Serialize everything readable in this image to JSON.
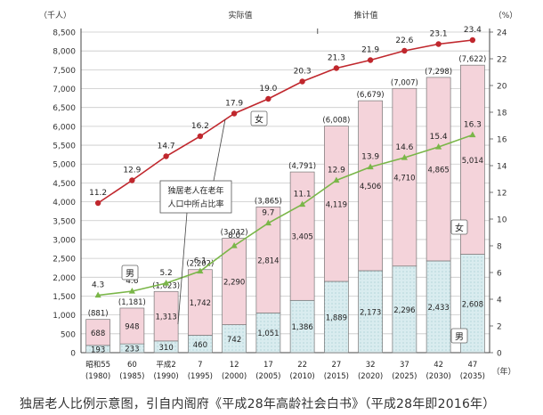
{
  "caption": "独居老人比例示意图，引自内阁府《平成28年高龄社会白书》（平成28年即2016年）",
  "chart_data": {
    "type": "bar",
    "left_axis": {
      "unit_label": "（千人）",
      "ylim": [
        0,
        8500
      ],
      "ticks": [
        "0",
        "500",
        "1,000",
        "1,500",
        "2,000",
        "2,500",
        "3,000",
        "3,500",
        "4,000",
        "4,500",
        "5,000",
        "5,500",
        "6,000",
        "6,500",
        "7,000",
        "7,500",
        "8,000",
        "8,500"
      ]
    },
    "right_axis": {
      "unit_label": "（%）",
      "ylim": [
        0,
        24
      ],
      "ticks": [
        "0",
        "2",
        "4",
        "6",
        "8",
        "10",
        "12",
        "14",
        "16",
        "18",
        "20",
        "22",
        "24"
      ]
    },
    "section_labels": {
      "actual": "实际值",
      "estimated": "推计值"
    },
    "x_unit": "（年）",
    "categories": [
      {
        "era": "昭和55",
        "year": "(1980)"
      },
      {
        "era": "60",
        "year": "(1985)"
      },
      {
        "era": "平成2",
        "year": "(1990)"
      },
      {
        "era": "7",
        "year": "(1995)"
      },
      {
        "era": "12",
        "year": "(2000)"
      },
      {
        "era": "17",
        "year": "(2005)"
      },
      {
        "era": "22",
        "year": "(2010)"
      },
      {
        "era": "27",
        "year": "(2015)"
      },
      {
        "era": "32",
        "year": "(2020)"
      },
      {
        "era": "37",
        "year": "(2025)"
      },
      {
        "era": "42",
        "year": "(2030)"
      },
      {
        "era": "47",
        "year": "(2035)"
      }
    ],
    "stacked_bars": {
      "male": [
        193,
        233,
        310,
        460,
        742,
        1051,
        1386,
        1889,
        2173,
        2296,
        2433,
        2608
      ],
      "female": [
        688,
        948,
        1313,
        1742,
        2290,
        2814,
        3405,
        4119,
        4506,
        4710,
        4865,
        5014
      ],
      "totals": [
        881,
        1181,
        1623,
        2202,
        3032,
        3865,
        4791,
        6008,
        6679,
        7007,
        7298,
        7622
      ],
      "male_labels": [
        "193",
        "233",
        "310",
        "460",
        "742",
        "1,051",
        "1,386",
        "1,889",
        "2,173",
        "2,296",
        "2,433",
        "2,608"
      ],
      "female_labels": [
        "688",
        "948",
        "1,313",
        "1,742",
        "2,290",
        "2,814",
        "3,405",
        "4,119",
        "4,506",
        "4,710",
        "4,865",
        "5,014"
      ],
      "total_labels": [
        "(881)",
        "(1,181)",
        "(1,623)",
        "(2,202)",
        "(3,032)",
        "(3,865)",
        "(4,791)",
        "(6,008)",
        "(6,679)",
        "(7,007)",
        "(7,298)",
        "(7,622)"
      ]
    },
    "lines": {
      "female_ratio": [
        11.2,
        12.9,
        14.7,
        16.2,
        17.9,
        19.0,
        20.3,
        21.3,
        21.9,
        22.6,
        23.1,
        23.4
      ],
      "female_ratio_labels": [
        "11.2",
        "12.9",
        "14.7",
        "16.2",
        "17.9",
        "19.0",
        "20.3",
        "21.3",
        "21.9",
        "22.6",
        "23.1",
        "23.4"
      ],
      "male_ratio": [
        4.3,
        4.6,
        5.2,
        6.1,
        8.0,
        9.7,
        11.1,
        12.9,
        13.9,
        14.6,
        15.4,
        16.3
      ],
      "male_ratio_labels": [
        "4.3",
        "4.6",
        "5.2",
        "6.1",
        "8.0",
        "9.7",
        "11.1",
        "12.9",
        "13.9",
        "14.6",
        "15.4",
        "16.3"
      ]
    },
    "labels": {
      "female": "女",
      "male": "男",
      "callout": [
        "独居老人在老年",
        "人口中所占比率"
      ]
    },
    "colors": {
      "female_bar": "#f4d3da",
      "male_bar": "#d9ecef",
      "female_line": "#c0272d",
      "male_line": "#7ab648",
      "grid": "#c8c8c8"
    },
    "estimated_from_index": 7
  }
}
